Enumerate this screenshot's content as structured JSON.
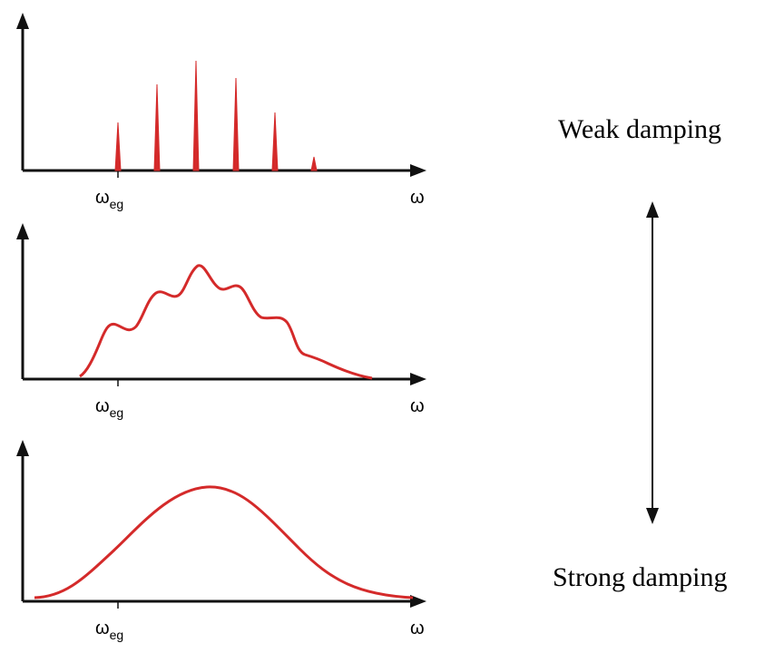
{
  "colors": {
    "curve": "#d42a2a",
    "axis": "#111111"
  },
  "panels": [
    {
      "peak_label_main": "ω",
      "peak_label_sub": "eg",
      "axis_label": "ω"
    },
    {
      "peak_label_main": "ω",
      "peak_label_sub": "eg",
      "axis_label": "ω"
    },
    {
      "peak_label_main": "ω",
      "peak_label_sub": "eg",
      "axis_label": "ω"
    }
  ],
  "side": {
    "top_label": "Weak damping",
    "bottom_label": "Strong damping"
  }
}
